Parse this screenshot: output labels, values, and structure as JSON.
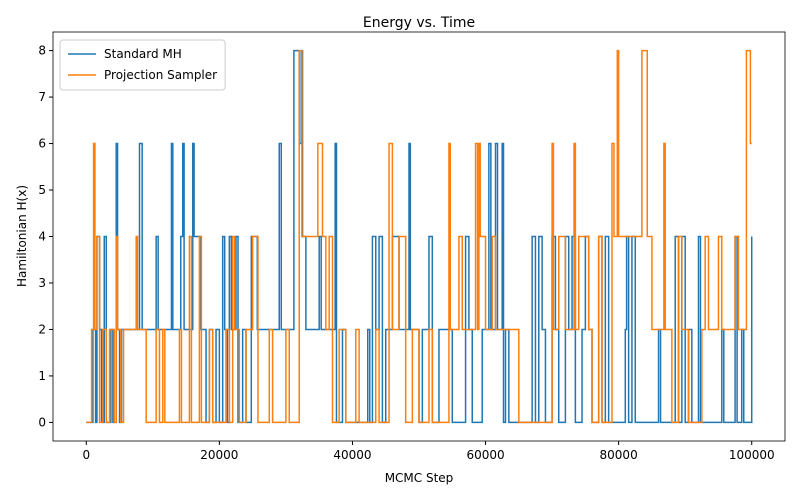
{
  "chart_data": {
    "type": "step",
    "title": "Energy vs. Time",
    "x_label": "MCMC Step",
    "y_label": "Hamiltonian H(x)",
    "xlim": [
      -5000,
      105000
    ],
    "xticks": [
      0,
      20000,
      40000,
      60000,
      80000,
      100000
    ],
    "ylim": [
      -0.4,
      8.4
    ],
    "yticks": [
      0,
      1,
      2,
      3,
      4,
      5,
      6,
      7,
      8
    ],
    "grid": false,
    "legend": "upper left",
    "series": [
      {
        "name": "Standard MH",
        "color": "#1f77b4",
        "x": [
          0,
          1000,
          1400,
          1600,
          2000,
          2300,
          2700,
          3000,
          3700,
          4000,
          4500,
          4700,
          5000,
          5300,
          8000,
          8400,
          10500,
          10800,
          12800,
          13000,
          14200,
          14500,
          14700,
          16000,
          16200,
          17200,
          18000,
          18500,
          19000,
          19500,
          20000,
          20500,
          20800,
          21200,
          21500,
          21800,
          22500,
          22800,
          23500,
          24000,
          24800,
          25700,
          29000,
          29300,
          31200,
          32000,
          32300,
          32500,
          33000,
          35000,
          35300,
          37400,
          37600,
          38500,
          39000,
          42300,
          42600,
          43000,
          43500,
          44000,
          44500,
          45000,
          46000,
          47000,
          48500,
          48700,
          50000,
          50500,
          51500,
          52000,
          53000,
          55000,
          57000,
          57500,
          58000,
          59500,
          60500,
          60800,
          61500,
          61800,
          62500,
          62700,
          63000,
          63500,
          67000,
          67500,
          68000,
          68500,
          69000,
          70000,
          70500,
          71000,
          72000,
          72500,
          73000,
          73500,
          74500,
          75000,
          75500,
          76000,
          77000,
          77500,
          78000,
          78500,
          81000,
          81200,
          81500,
          82000,
          82500,
          86000,
          86300,
          88500,
          89000,
          89500,
          90000,
          90500,
          91000,
          92000,
          92300,
          95500,
          95800,
          97500,
          97800,
          98500,
          98800,
          100000
        ],
        "values": [
          0,
          2,
          0,
          4,
          2,
          0,
          4,
          0,
          2,
          0,
          6,
          2,
          0,
          2,
          6,
          2,
          4,
          2,
          6,
          2,
          4,
          6,
          2,
          6,
          4,
          2,
          0,
          2,
          0,
          2,
          0,
          4,
          2,
          0,
          4,
          2,
          4,
          0,
          2,
          0,
          4,
          2,
          6,
          2,
          8,
          6,
          8,
          4,
          2,
          4,
          2,
          6,
          0,
          2,
          0,
          2,
          0,
          4,
          2,
          4,
          0,
          2,
          4,
          2,
          6,
          2,
          0,
          2,
          4,
          0,
          2,
          0,
          4,
          2,
          0,
          2,
          6,
          2,
          6,
          2,
          6,
          0,
          2,
          0,
          4,
          0,
          4,
          2,
          0,
          4,
          2,
          0,
          4,
          2,
          4,
          0,
          2,
          4,
          2,
          0,
          4,
          0,
          4,
          0,
          2,
          4,
          0,
          4,
          0,
          2,
          0,
          4,
          0,
          4,
          0,
          2,
          0,
          4,
          0,
          2,
          0,
          4,
          0,
          2,
          0,
          4
        ]
      },
      {
        "name": "Projection Sampler",
        "color": "#ff7f0e",
        "x": [
          0,
          800,
          1100,
          1300,
          1600,
          2000,
          2500,
          3000,
          3500,
          4200,
          4500,
          4700,
          5200,
          5600,
          7500,
          7700,
          9000,
          10500,
          11000,
          11500,
          11800,
          14000,
          14300,
          15500,
          15800,
          17000,
          17300,
          18500,
          19000,
          21000,
          21500,
          22000,
          22300,
          23000,
          24000,
          25000,
          25800,
          27500,
          28000,
          30000,
          30500,
          32000,
          32400,
          34800,
          35500,
          36000,
          36500,
          37000,
          38000,
          39000,
          40500,
          41000,
          43500,
          44000,
          45500,
          46000,
          47000,
          48000,
          49000,
          50000,
          51500,
          52000,
          54500,
          54700,
          56000,
          56500,
          58500,
          58800,
          59000,
          59200,
          60000,
          61000,
          61500,
          65000,
          70000,
          70200,
          71000,
          72000,
          73300,
          73500,
          74000,
          75500,
          76000,
          77000,
          77500,
          79000,
          79300,
          79800,
          80000,
          83500,
          84300,
          85000,
          86800,
          87000,
          88000,
          89000,
          89500,
          90500,
          92500,
          93000,
          93500,
          95000,
          95500,
          97500,
          98000,
          99200,
          99800,
          100000
        ],
        "values": [
          0,
          2,
          6,
          2,
          4,
          0,
          2,
          0,
          2,
          0,
          4,
          2,
          0,
          2,
          4,
          2,
          0,
          2,
          0,
          2,
          0,
          2,
          0,
          4,
          0,
          4,
          0,
          2,
          0,
          2,
          0,
          4,
          2,
          0,
          2,
          4,
          0,
          2,
          0,
          2,
          0,
          8,
          4,
          6,
          4,
          2,
          4,
          0,
          2,
          0,
          2,
          0,
          2,
          0,
          6,
          2,
          4,
          0,
          2,
          0,
          2,
          0,
          6,
          2,
          4,
          2,
          6,
          2,
          6,
          4,
          2,
          4,
          2,
          0,
          6,
          2,
          4,
          2,
          6,
          2,
          4,
          2,
          0,
          4,
          0,
          6,
          4,
          8,
          4,
          8,
          4,
          2,
          6,
          2,
          0,
          4,
          2,
          0,
          2,
          4,
          2,
          4,
          2,
          4,
          2,
          8,
          6,
          6
        ]
      }
    ]
  }
}
